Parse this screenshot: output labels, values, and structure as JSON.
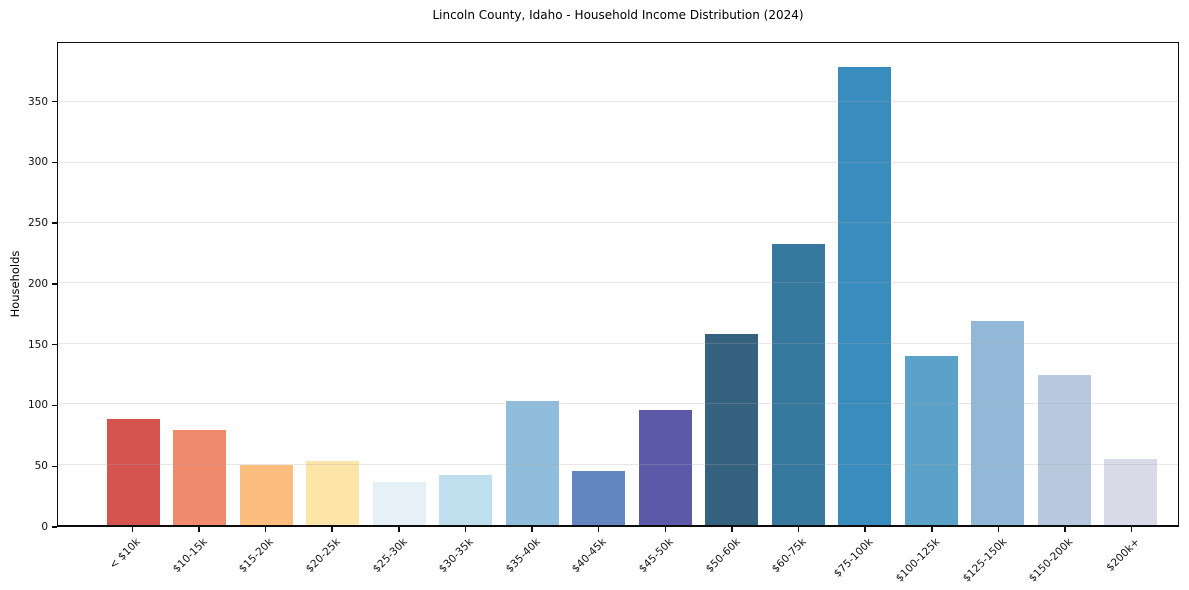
{
  "colors": {
    "background": "#ffffff",
    "grid": "#e7e7e7",
    "axis": "#0d0d0d",
    "text": "#1a1a1a"
  },
  "chart_data": {
    "type": "bar",
    "title": "Lincoln County, Idaho - Household Income Distribution (2024)",
    "xlabel": "",
    "ylabel": "Households",
    "ylim": [
      0,
      399
    ],
    "yticks": [
      0,
      50,
      100,
      150,
      200,
      250,
      300,
      350
    ],
    "grid": "horizontal, drawn over bars",
    "legend": "none",
    "categories": [
      "< $10k",
      "$10-15k",
      "$15-20k",
      "$20-25k",
      "$25-30k",
      "$30-35k",
      "$35-40k",
      "$40-45k",
      "$45-50k",
      "$50-60k",
      "$60-75k",
      "$75-100k",
      "$100-125k",
      "$125-150k",
      "$150-200k",
      "$200k+"
    ],
    "values": [
      88,
      79,
      50,
      53,
      36,
      41,
      103,
      45,
      95,
      158,
      233,
      379,
      140,
      169,
      124,
      55
    ],
    "bar_colors": [
      "#d6544f",
      "#f08a6c",
      "#fbbd7d",
      "#fde5a7",
      "#e5f1f7",
      "#bedfed",
      "#91bddc",
      "#6286c0",
      "#5c5aa8",
      "#35637f",
      "#36789e",
      "#398dbe",
      "#5aa2c8",
      "#92b7d7",
      "#b6c9de",
      "#d8dae8"
    ]
  }
}
